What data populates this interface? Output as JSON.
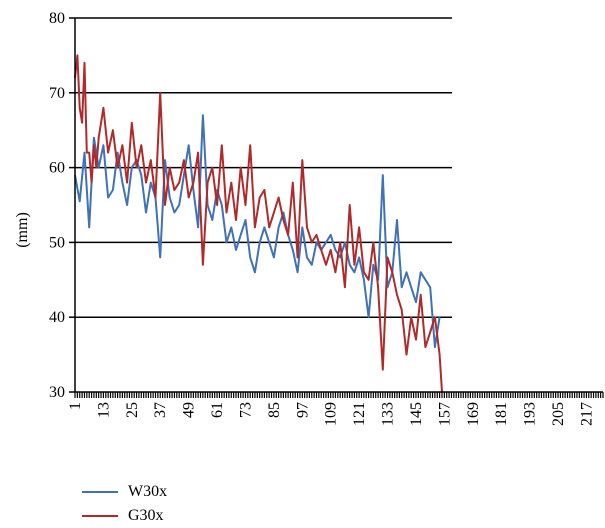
{
  "chart_data": {
    "type": "line",
    "title": "",
    "xlabel": "",
    "ylabel": "(mm)",
    "ylim": [
      30,
      80
    ],
    "yticks": [
      30,
      40,
      50,
      60,
      70,
      80
    ],
    "xlim": [
      1,
      224
    ],
    "xticks": [
      1,
      13,
      25,
      37,
      49,
      61,
      73,
      85,
      97,
      109,
      121,
      133,
      145,
      157,
      169,
      181,
      193,
      205,
      217
    ],
    "gridlines": true,
    "legend_position": "bottom-left",
    "series": [
      {
        "name": "W30x",
        "color": "#3f72b6",
        "x": [
          1,
          3,
          5,
          7,
          9,
          11,
          13,
          15,
          17,
          19,
          21,
          23,
          25,
          27,
          29,
          31,
          33,
          35,
          37,
          39,
          41,
          43,
          45,
          47,
          49,
          51,
          53,
          55,
          57,
          59,
          61,
          63,
          65,
          67,
          69,
          71,
          73,
          75,
          77,
          79,
          81,
          83,
          85,
          87,
          89,
          91,
          93,
          95,
          97,
          99,
          101,
          103,
          105,
          107,
          109,
          111,
          113,
          115,
          117,
          119,
          121,
          123,
          125,
          127,
          129,
          131,
          133,
          135,
          137,
          139,
          141,
          143,
          145,
          147,
          149,
          151,
          153,
          155
        ],
        "values": [
          59,
          55.5,
          62,
          52,
          64,
          60,
          63,
          56,
          57,
          62,
          58,
          55,
          60,
          61,
          59,
          54,
          58,
          56,
          48,
          61,
          56,
          54,
          55,
          59,
          63,
          57,
          52,
          67,
          55,
          53,
          57,
          55,
          50,
          52,
          49,
          51,
          53,
          48,
          46,
          50,
          52,
          50,
          48,
          52,
          54,
          51,
          49,
          46,
          52,
          48,
          47,
          50,
          49,
          50,
          51,
          49,
          48,
          50,
          47,
          46,
          48,
          45,
          40,
          47,
          45,
          59,
          44,
          46,
          53,
          44,
          46,
          44,
          42,
          46,
          45,
          44,
          36,
          40
        ]
      },
      {
        "name": "G30x",
        "color": "#b02a2a",
        "x": [
          1,
          2,
          3,
          4,
          5,
          6,
          7,
          8,
          9,
          10,
          11,
          13,
          15,
          17,
          19,
          21,
          23,
          25,
          27,
          29,
          31,
          33,
          35,
          37,
          39,
          41,
          43,
          45,
          47,
          49,
          51,
          53,
          55,
          57,
          59,
          61,
          63,
          65,
          67,
          69,
          71,
          73,
          75,
          77,
          79,
          81,
          83,
          85,
          87,
          89,
          91,
          93,
          95,
          97,
          99,
          101,
          103,
          105,
          107,
          109,
          111,
          113,
          115,
          117,
          119,
          121,
          123,
          125,
          127,
          129,
          131,
          133,
          135,
          137,
          139,
          141,
          143,
          145,
          147,
          149,
          151,
          153,
          155,
          156
        ],
        "values": [
          72,
          75,
          68,
          66,
          74,
          62,
          62,
          58,
          63,
          60,
          64,
          68,
          62,
          65,
          60,
          63,
          58,
          66,
          60,
          63,
          58,
          61,
          56,
          70,
          55,
          60,
          57,
          58,
          61,
          56,
          58,
          62,
          47,
          58,
          60,
          55,
          63,
          54,
          58,
          53,
          60,
          55,
          63,
          52,
          56,
          57,
          52,
          54,
          56,
          53,
          51,
          58,
          48,
          61,
          52,
          50,
          51,
          49,
          47,
          49,
          46,
          50,
          44,
          55,
          47,
          52,
          46,
          45,
          50,
          44,
          33,
          48,
          46,
          43,
          41,
          35,
          40,
          37,
          43,
          36,
          38,
          40,
          35,
          30
        ]
      }
    ]
  }
}
